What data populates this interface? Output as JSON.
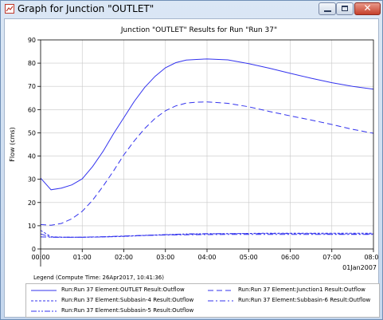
{
  "window": {
    "title": "Graph for Junction \"OUTLET\"",
    "buttons": {
      "minimize": "minimize",
      "maximize": "maximize",
      "close": "✕"
    }
  },
  "chart_data": {
    "type": "line",
    "title": "Junction \"OUTLET\" Results for Run \"Run 37\"",
    "ylabel": "Flow (cms)",
    "xlabel": "",
    "ylim": [
      0,
      90
    ],
    "yticks": [
      0,
      10,
      20,
      30,
      40,
      50,
      60,
      70,
      80,
      90
    ],
    "xlim": [
      "00:00",
      "08:00"
    ],
    "xtick_labels": [
      "00:00",
      "01:00",
      "02:00",
      "03:00",
      "04:00",
      "05:00",
      "06:00",
      "07:00",
      "08:00"
    ],
    "date_label": "01Jan2007",
    "grid": true,
    "color": "#3333ee",
    "series": [
      {
        "name": "Run:Run 37 Element:OUTLET Result:Outflow",
        "dash": "solid",
        "x": [
          0,
          0.25,
          0.5,
          0.75,
          1.0,
          1.25,
          1.5,
          1.75,
          2.0,
          2.25,
          2.5,
          2.75,
          3.0,
          3.25,
          3.5,
          3.75,
          4.0,
          4.5,
          5.0,
          5.5,
          6.0,
          6.5,
          7.0,
          7.5,
          8.0
        ],
        "y": [
          30.5,
          25.5,
          26.2,
          27.6,
          30.2,
          35.5,
          42.0,
          49.5,
          56.5,
          63.5,
          69.5,
          74.3,
          78.0,
          80.2,
          81.3,
          81.6,
          81.8,
          81.4,
          79.8,
          77.8,
          75.6,
          73.5,
          71.6,
          70.0,
          68.8
        ]
      },
      {
        "name": "Run:Run 37 Element:Junction1 Result:Outflow",
        "dash": "long",
        "x": [
          0,
          0.25,
          0.5,
          0.75,
          1.0,
          1.25,
          1.5,
          1.75,
          2.0,
          2.25,
          2.5,
          2.75,
          3.0,
          3.25,
          3.5,
          3.75,
          4.0,
          4.5,
          5.0,
          5.5,
          6.0,
          6.5,
          7.0,
          7.5,
          8.0
        ],
        "y": [
          10.5,
          10.2,
          11.0,
          13.0,
          16.2,
          21.0,
          27.0,
          33.5,
          40.5,
          46.5,
          51.8,
          56.2,
          59.5,
          61.6,
          62.8,
          63.2,
          63.3,
          62.7,
          61.2,
          59.2,
          57.3,
          55.5,
          53.6,
          51.5,
          49.8
        ]
      },
      {
        "name": "Run:Run 37 Element:Subbasin-4 Result:Outflow",
        "dash": "short",
        "x": [
          0,
          0.25,
          0.5,
          1.0,
          1.5,
          2.0,
          2.5,
          3.0,
          3.5,
          4.0,
          4.5,
          5.0,
          5.5,
          6.0,
          6.5,
          7.0,
          7.5,
          8.0
        ],
        "y": [
          8.0,
          5.3,
          5.1,
          5.1,
          5.2,
          5.4,
          5.8,
          6.1,
          6.3,
          6.5,
          6.6,
          6.7,
          6.8,
          6.8,
          6.8,
          6.8,
          6.8,
          6.8
        ]
      },
      {
        "name": "Run:Run 37 Element:Subbasin-6 Result:Outflow",
        "dash": "dashdot",
        "x": [
          0,
          0.25,
          0.5,
          1.0,
          1.5,
          2.0,
          2.5,
          3.0,
          3.5,
          4.0,
          4.5,
          5.0,
          5.5,
          6.0,
          6.5,
          7.0,
          7.5,
          8.0
        ],
        "y": [
          5.2,
          5.1,
          5.1,
          5.1,
          5.3,
          5.6,
          5.8,
          6.0,
          6.1,
          6.2,
          6.3,
          6.3,
          6.3,
          6.3,
          6.3,
          6.3,
          6.3,
          6.3
        ]
      },
      {
        "name": "Run:Run 37 Element:Subbasin-5 Result:Outflow",
        "dash": "dashdotdot",
        "x": [
          0,
          0.25,
          0.5,
          1.0,
          1.5,
          2.0,
          2.5,
          3.0,
          3.5,
          4.0,
          4.5,
          5.0,
          5.5,
          6.0,
          6.5,
          7.0,
          7.5,
          8.0
        ],
        "y": [
          6.5,
          5.1,
          5.0,
          5.0,
          5.2,
          5.5,
          5.9,
          6.2,
          6.5,
          6.6,
          6.6,
          6.6,
          6.6,
          6.6,
          6.6,
          6.5,
          6.5,
          6.5
        ]
      }
    ]
  },
  "legend": {
    "title": "Legend (Compute Time: 26Apr2017, 10:41:36)",
    "entries": [
      {
        "label": "Run:Run 37 Element:OUTLET Result:Outflow",
        "dash": "solid"
      },
      {
        "label": "Run:Run 37 Element:Junction1 Result:Outflow",
        "dash": "long"
      },
      {
        "label": "Run:Run 37 Element:Subbasin-4 Result:Outflow",
        "dash": "short"
      },
      {
        "label": "Run:Run 37 Element:Subbasin-6 Result:Outflow",
        "dash": "dashdot"
      },
      {
        "label": "Run:Run 37 Element:Subbasin-5 Result:Outflow",
        "dash": "dashdotdot"
      }
    ]
  }
}
